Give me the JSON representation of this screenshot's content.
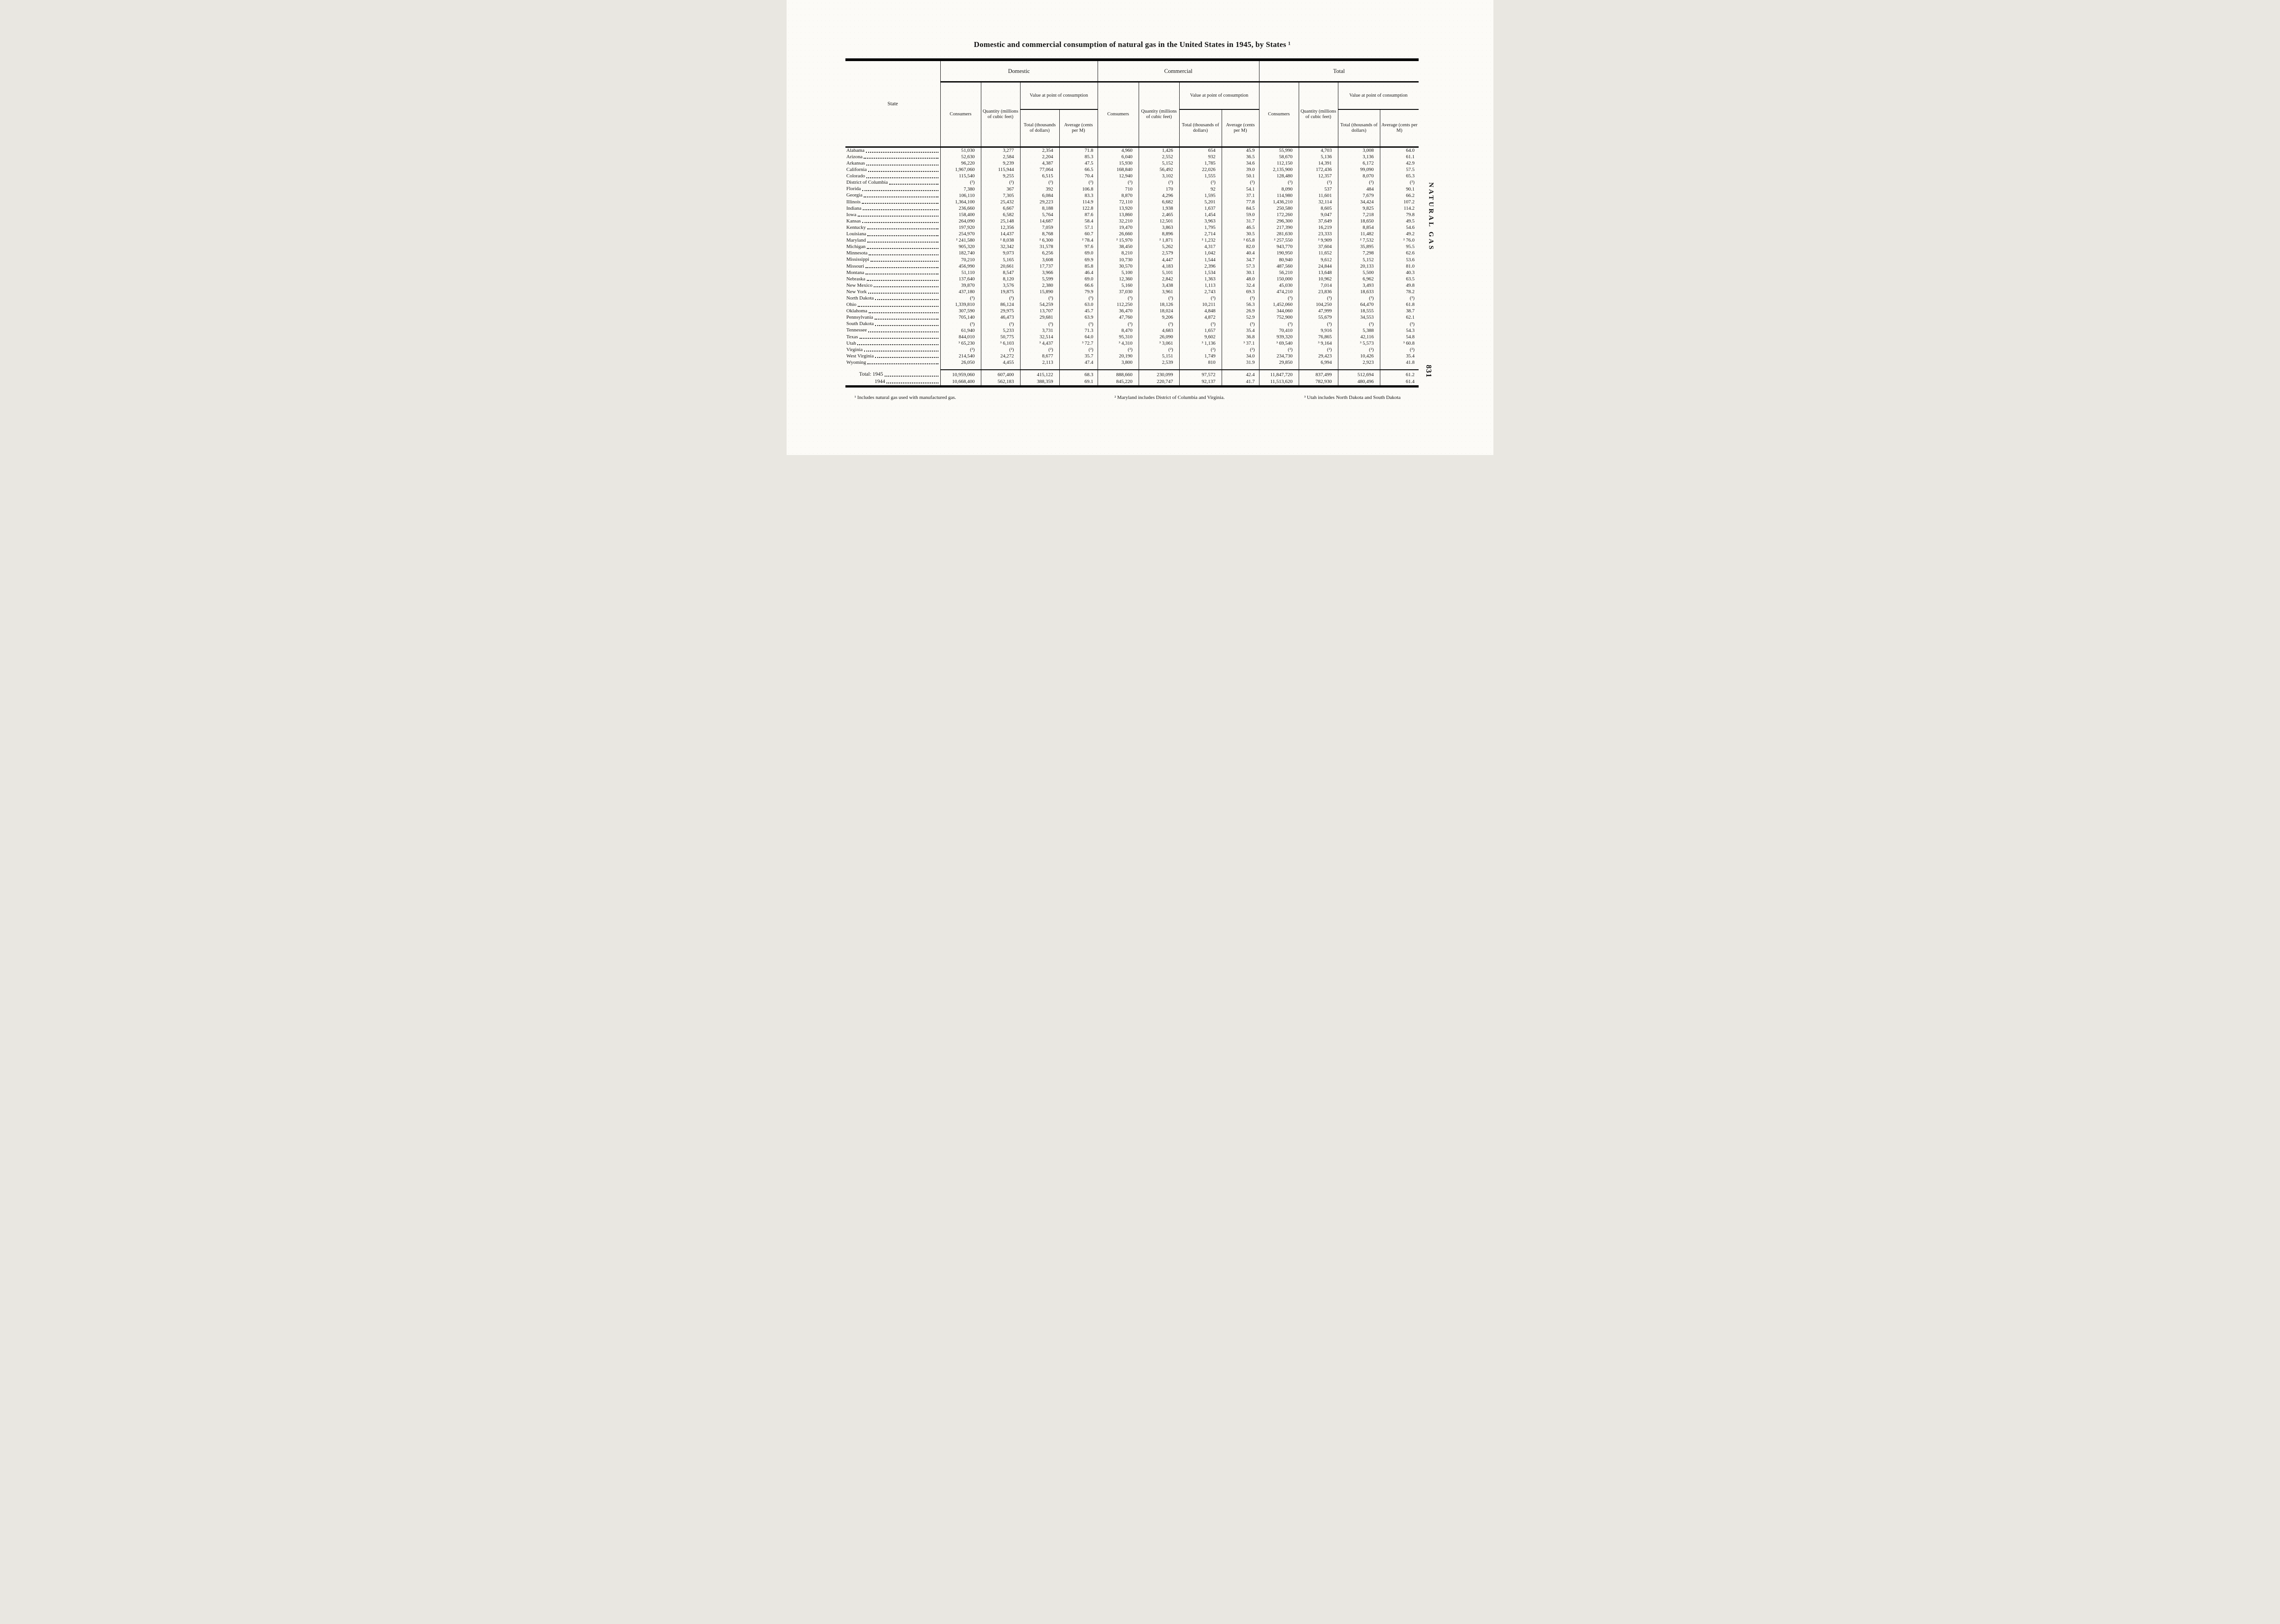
{
  "page": {
    "title": "Domestic and commercial consumption of natural gas in the United States in 1945, by States ¹",
    "side_label": "NATURAL GAS",
    "page_number": "831"
  },
  "table": {
    "state_header": "State",
    "groups": [
      "Domestic",
      "Commercial",
      "Total"
    ],
    "sub": {
      "consumers": "Consumers",
      "quantity": "Quantity (millions of cubic feet)",
      "value": "Value at point of consumption",
      "total": "Total (thousands of dollars)",
      "average": "Average (cents per M)"
    },
    "rows": [
      {
        "state": "Alabama",
        "values": [
          "51,030",
          "3,277",
          "2,354",
          "71.8",
          "4,960",
          "1,426",
          "654",
          "45.9",
          "55,990",
          "4,703",
          "3,008",
          "64.0"
        ]
      },
      {
        "state": "Arizona",
        "values": [
          "52,630",
          "2,584",
          "2,204",
          "85.3",
          "6,040",
          "2,552",
          "932",
          "36.5",
          "58,670",
          "5,136",
          "3,136",
          "61.1"
        ]
      },
      {
        "state": "Arkansas",
        "values": [
          "96,220",
          "9,239",
          "4,387",
          "47.5",
          "15,930",
          "5,152",
          "1,785",
          "34.6",
          "112,150",
          "14,391",
          "6,172",
          "42.9"
        ]
      },
      {
        "state": "California",
        "values": [
          "1,967,060",
          "115,944",
          "77,064",
          "66.5",
          "168,840",
          "56,492",
          "22,026",
          "39.0",
          "2,135,900",
          "172,436",
          "99,090",
          "57.5"
        ]
      },
      {
        "state": "Colorado",
        "values": [
          "115,540",
          "9,255",
          "6,515",
          "70.4",
          "12,940",
          "3,102",
          "1,555",
          "50.1",
          "128,480",
          "12,357",
          "8,070",
          "65.3"
        ]
      },
      {
        "state": "District of Columbia",
        "values": [
          "(²)",
          "(²)",
          "(²)",
          "(²)",
          "(²)",
          "(²)",
          "(²)",
          "(²)",
          "(²)",
          "(²)",
          "(²)",
          "(²)"
        ]
      },
      {
        "state": "Florida",
        "values": [
          "7,380",
          "367",
          "392",
          "106.8",
          "710",
          "170",
          "92",
          "54.1",
          "8,090",
          "537",
          "484",
          "90.1"
        ]
      },
      {
        "state": "Georgia",
        "values": [
          "106,110",
          "7,305",
          "6,084",
          "83.3",
          "8,870",
          "4,296",
          "1,595",
          "37.1",
          "114,980",
          "11,601",
          "7,679",
          "66.2"
        ]
      },
      {
        "state": "Illinois",
        "values": [
          "1,364,100",
          "25,432",
          "29,223",
          "114.9",
          "72,110",
          "6,682",
          "5,201",
          "77.8",
          "1,436,210",
          "32,114",
          "34,424",
          "107.2"
        ]
      },
      {
        "state": "Indiana",
        "values": [
          "236,660",
          "6,667",
          "8,188",
          "122.8",
          "13,920",
          "1,938",
          "1,637",
          "84.5",
          "250,580",
          "8,605",
          "9,825",
          "114.2"
        ]
      },
      {
        "state": "Iowa",
        "values": [
          "158,400",
          "6,582",
          "5,764",
          "87.6",
          "13,860",
          "2,465",
          "1,454",
          "59.0",
          "172,260",
          "9,047",
          "7,218",
          "79.8"
        ]
      },
      {
        "state": "Kansas",
        "values": [
          "264,090",
          "25,148",
          "14,687",
          "58.4",
          "32,210",
          "12,501",
          "3,963",
          "31.7",
          "296,300",
          "37,649",
          "18,650",
          "49.5"
        ]
      },
      {
        "state": "Kentucky",
        "values": [
          "197,920",
          "12,356",
          "7,059",
          "57.1",
          "19,470",
          "3,863",
          "1,795",
          "46.5",
          "217,390",
          "16,219",
          "8,854",
          "54.6"
        ]
      },
      {
        "state": "Louisiana",
        "values": [
          "254,970",
          "14,437",
          "8,768",
          "60.7",
          "26,660",
          "8,896",
          "2,714",
          "30.5",
          "281,630",
          "23,333",
          "11,482",
          "49.2"
        ]
      },
      {
        "state": "Maryland",
        "values": [
          "² 241,580",
          "² 8,038",
          "² 6,300",
          "² 78.4",
          "² 15,970",
          "² 1,871",
          "² 1,232",
          "² 65.8",
          "² 257,550",
          "² 9,909",
          "² 7,532",
          "² 76.0"
        ]
      },
      {
        "state": "Michigan",
        "values": [
          "905,320",
          "32,342",
          "31,578",
          "97.6",
          "38,450",
          "5,262",
          "4,317",
          "82.0",
          "943,770",
          "37,604",
          "35,895",
          "95.5"
        ]
      },
      {
        "state": "Minnesota",
        "values": [
          "182,740",
          "9,073",
          "6,256",
          "69.0",
          "8,210",
          "2,579",
          "1,042",
          "40.4",
          "190,950",
          "11,652",
          "7,298",
          "62.6"
        ]
      },
      {
        "state": "Mississippi",
        "values": [
          "70,210",
          "5,165",
          "3,608",
          "69.9",
          "10,730",
          "4,447",
          "1,544",
          "34.7",
          "80,940",
          "9,612",
          "5,152",
          "53.6"
        ]
      },
      {
        "state": "Missouri",
        "values": [
          "456,990",
          "20,661",
          "17,737",
          "85.8",
          "30,570",
          "4,183",
          "2,396",
          "57.3",
          "487,560",
          "24,844",
          "20,133",
          "81.0"
        ]
      },
      {
        "state": "Montana",
        "values": [
          "51,110",
          "8,547",
          "3,966",
          "46.4",
          "5,100",
          "5,101",
          "1,534",
          "30.1",
          "56,210",
          "13,648",
          "5,500",
          "40.3"
        ]
      },
      {
        "state": "Nebraska",
        "values": [
          "137,640",
          "8,120",
          "5,599",
          "69.0",
          "12,360",
          "2,842",
          "1,363",
          "48.0",
          "150,000",
          "10,962",
          "6,962",
          "63.5"
        ]
      },
      {
        "state": "New Mexico",
        "values": [
          "39,870",
          "3,576",
          "2,380",
          "66.6",
          "5,160",
          "3,438",
          "1,113",
          "32.4",
          "45,030",
          "7,014",
          "3,493",
          "49.8"
        ]
      },
      {
        "state": "New York",
        "values": [
          "437,180",
          "19,875",
          "15,890",
          "79.9",
          "37,030",
          "3,961",
          "2,743",
          "69.3",
          "474,210",
          "23,836",
          "18,633",
          "78.2"
        ]
      },
      {
        "state": "North Dakota",
        "values": [
          "(³)",
          "(³)",
          "(³)",
          "(³)",
          "(³)",
          "(³)",
          "(³)",
          "(³)",
          "(³)",
          "(³)",
          "(³)",
          "(³)"
        ]
      },
      {
        "state": "Ohio",
        "values": [
          "1,339,810",
          "86,124",
          "54,259",
          "63.0",
          "112,250",
          "18,126",
          "10,211",
          "56.3",
          "1,452,060",
          "104,250",
          "64,470",
          "61.8"
        ]
      },
      {
        "state": "Oklahoma",
        "values": [
          "307,590",
          "29,975",
          "13,707",
          "45.7",
          "36,470",
          "18,024",
          "4,848",
          "26.9",
          "344,060",
          "47,999",
          "18,555",
          "38.7"
        ]
      },
      {
        "state": "Pennsylvania",
        "values": [
          "705,140",
          "46,473",
          "29,681",
          "63.9",
          "47,760",
          "9,206",
          "4,872",
          "52.9",
          "752,900",
          "55,679",
          "34,553",
          "62.1"
        ]
      },
      {
        "state": "South Dakota",
        "values": [
          "(³)",
          "(³)",
          "(³)",
          "(³)",
          "(³)",
          "(³)",
          "(³)",
          "(³)",
          "(³)",
          "(³)",
          "(³)",
          "(³)"
        ]
      },
      {
        "state": "Tennessee",
        "values": [
          "61,940",
          "5,233",
          "3,731",
          "71.3",
          "8,470",
          "4,683",
          "1,657",
          "35.4",
          "70,410",
          "9,916",
          "5,388",
          "54.3"
        ]
      },
      {
        "state": "Texas",
        "values": [
          "844,010",
          "50,775",
          "32,514",
          "64.0",
          "95,310",
          "26,090",
          "9,602",
          "36.8",
          "939,320",
          "76,865",
          "42,116",
          "54.8"
        ]
      },
      {
        "state": "Utah",
        "values": [
          "³ 65,230",
          "³ 6,103",
          "³ 4,437",
          "³ 72.7",
          "³ 4,310",
          "³ 3,061",
          "³ 1,136",
          "³ 37.1",
          "³ 69,540",
          "³ 9,164",
          "³ 5,573",
          "³ 60.8"
        ]
      },
      {
        "state": "Virginia",
        "values": [
          "(²)",
          "(²)",
          "(²)",
          "(²)",
          "(²)",
          "(²)",
          "(²)",
          "(²)",
          "(²)",
          "(²)",
          "(²)",
          "(²)"
        ]
      },
      {
        "state": "West Virginia",
        "values": [
          "214,540",
          "24,272",
          "8,677",
          "35.7",
          "20,190",
          "5,151",
          "1,749",
          "34.0",
          "234,730",
          "29,423",
          "10,426",
          "35.4"
        ]
      },
      {
        "state": "Wyoming",
        "values": [
          "26,050",
          "4,455",
          "2,113",
          "47.4",
          "3,800",
          "2,539",
          "810",
          "31.9",
          "29,850",
          "6,994",
          "2,923",
          "41.8"
        ]
      }
    ],
    "total_rows": [
      {
        "label": "Total: 1945",
        "values": [
          "10,959,060",
          "607,400",
          "415,122",
          "68.3",
          "888,660",
          "230,099",
          "97,572",
          "42.4",
          "11,847,720",
          "837,499",
          "512,694",
          "61.2"
        ]
      },
      {
        "label": "1944",
        "values": [
          "10,668,400",
          "562,183",
          "388,359",
          "69.1",
          "845,220",
          "220,747",
          "92,137",
          "41.7",
          "11,513,620",
          "782,930",
          "480,496",
          "61.4"
        ]
      }
    ],
    "footnotes": [
      "¹ Includes natural gas used with manufactured gas.",
      "² Maryland includes District of Columbia and Virginia.",
      "³ Utah includes North Dakota and South Dakota"
    ]
  }
}
